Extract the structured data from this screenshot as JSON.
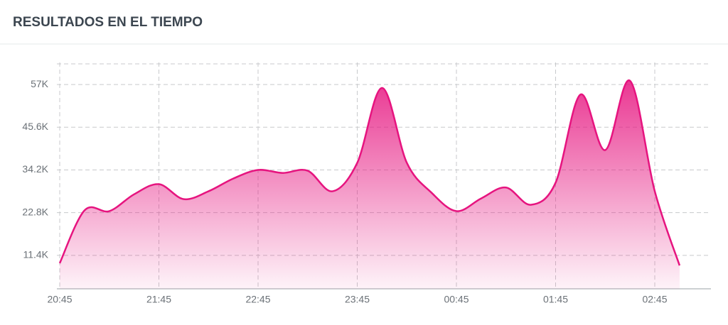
{
  "chart_data": {
    "type": "area",
    "title": "RESULTADOS EN EL TIEMPO",
    "categories": [
      "20:45",
      null,
      null,
      null,
      "21:45",
      null,
      null,
      null,
      "22:45",
      null,
      null,
      null,
      "23:45",
      null,
      null,
      null,
      "00:45",
      null,
      null,
      null,
      "01:45",
      null,
      null,
      null,
      "02:45",
      null
    ],
    "series": [
      {
        "color": "#e6147f",
        "values": [
          9300,
          23400,
          23200,
          27700,
          30400,
          26400,
          28500,
          31900,
          34200,
          33400,
          34000,
          28500,
          36100,
          56100,
          36100,
          28100,
          23200,
          26600,
          29500,
          24900,
          30800,
          54300,
          39500,
          58000,
          28500,
          8700
        ]
      }
    ],
    "ylim": [
      2470,
      62890
    ],
    "yticks": [
      {
        "value": 11400,
        "label": "11.4K"
      },
      {
        "value": 22800,
        "label": "22.8K"
      },
      {
        "value": 34200,
        "label": "34.2K"
      },
      {
        "value": 45600,
        "label": "45.6K"
      },
      {
        "value": 57000,
        "label": "57K"
      }
    ],
    "grid": true
  }
}
